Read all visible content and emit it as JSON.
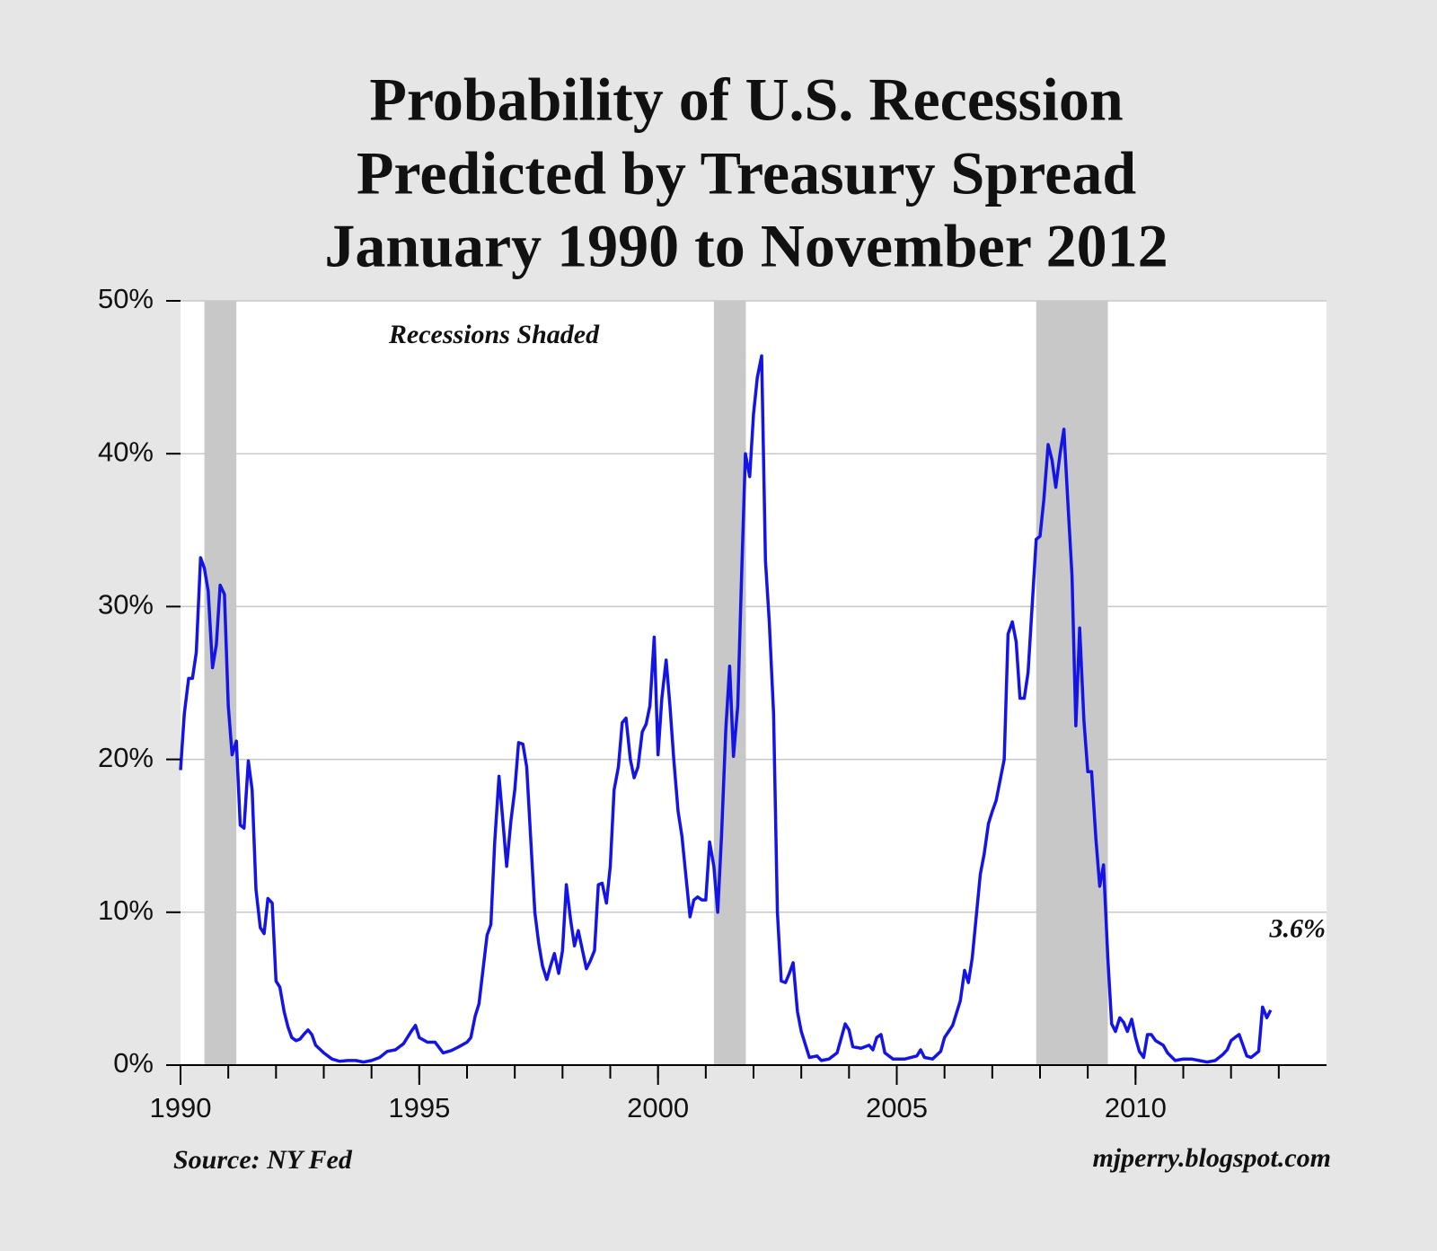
{
  "chart_data": {
    "type": "line",
    "title_lines": [
      "Probability of U.S. Recession",
      "Predicted by Treasury Spread",
      "January 1990 to November 2012"
    ],
    "annotation": "Recessions Shaded",
    "source": "Source: NY Fed",
    "credit": "mjperry.blogspot.com",
    "color": "#1414e6",
    "recessions": [
      [
        1990.5,
        1991.17
      ],
      [
        2001.17,
        2001.84
      ],
      [
        2007.92,
        2009.42
      ]
    ],
    "recession_color": "#c8c8c8",
    "xlim": [
      1990,
      2014
    ],
    "xticks": [
      1990,
      1995,
      2000,
      2005,
      2010
    ],
    "x_minor_ticks": [
      1990,
      1991,
      1992,
      1993,
      1994,
      1995,
      1996,
      1997,
      1998,
      1999,
      2000,
      2001,
      2002,
      2003,
      2004,
      2005,
      2006,
      2007,
      2008,
      2009,
      2010,
      2011,
      2012,
      2013
    ],
    "ylim": [
      0,
      50
    ],
    "yticks": [
      {
        "value": 0,
        "label": "0%"
      },
      {
        "value": 10,
        "label": "10%"
      },
      {
        "value": 20,
        "label": "20%"
      },
      {
        "value": 30,
        "label": "30%"
      },
      {
        "value": 40,
        "label": "40%"
      },
      {
        "value": 50,
        "label": "50%"
      }
    ],
    "grid": true,
    "x": [
      1990.0,
      1990.08,
      1990.17,
      1990.25,
      1990.33,
      1990.42,
      1990.5,
      1990.58,
      1990.67,
      1990.75,
      1990.83,
      1990.92,
      1991.0,
      1991.08,
      1991.17,
      1991.25,
      1991.33,
      1991.42,
      1991.5,
      1991.58,
      1991.67,
      1991.75,
      1991.83,
      1991.92,
      1992.0,
      1992.08,
      1992.17,
      1992.25,
      1992.33,
      1992.42,
      1992.5,
      1992.58,
      1992.67,
      1992.75,
      1992.83,
      1993.0,
      1993.17,
      1993.33,
      1993.5,
      1993.67,
      1993.83,
      1994.0,
      1994.17,
      1994.33,
      1994.5,
      1994.67,
      1994.83,
      1994.92,
      1995.0,
      1995.17,
      1995.33,
      1995.5,
      1995.67,
      1995.83,
      1996.0,
      1996.08,
      1996.17,
      1996.25,
      1996.42,
      1996.5,
      1996.58,
      1996.67,
      1996.75,
      1996.83,
      1996.92,
      1997.0,
      1997.08,
      1997.17,
      1997.25,
      1997.42,
      1997.5,
      1997.58,
      1997.67,
      1997.75,
      1997.83,
      1997.92,
      1998.0,
      1998.08,
      1998.17,
      1998.25,
      1998.33,
      1998.5,
      1998.58,
      1998.67,
      1998.75,
      1998.83,
      1998.92,
      1999.0,
      1999.08,
      1999.17,
      1999.25,
      1999.33,
      1999.42,
      1999.5,
      1999.58,
      1999.67,
      1999.75,
      1999.83,
      1999.92,
      2000.0,
      2000.08,
      2000.17,
      2000.25,
      2000.33,
      2000.42,
      2000.5,
      2000.58,
      2000.67,
      2000.75,
      2000.83,
      2000.92,
      2001.0,
      2001.08,
      2001.17,
      2001.25,
      2001.33,
      2001.42,
      2001.5,
      2001.58,
      2001.67,
      2001.75,
      2001.83,
      2001.92,
      2002.0,
      2002.08,
      2002.17,
      2002.25,
      2002.33,
      2002.42,
      2002.5,
      2002.58,
      2002.67,
      2002.75,
      2002.83,
      2002.92,
      2003.0,
      2003.17,
      2003.33,
      2003.42,
      2003.58,
      2003.75,
      2003.92,
      2004.0,
      2004.08,
      2004.25,
      2004.42,
      2004.5,
      2004.58,
      2004.67,
      2004.75,
      2004.92,
      2005.17,
      2005.42,
      2005.5,
      2005.58,
      2005.75,
      2005.92,
      2006.0,
      2006.17,
      2006.25,
      2006.33,
      2006.42,
      2006.5,
      2006.58,
      2006.75,
      2006.83,
      2006.92,
      2007.0,
      2007.08,
      2007.25,
      2007.33,
      2007.42,
      2007.5,
      2007.58,
      2007.67,
      2007.75,
      2007.92,
      2008.0,
      2008.08,
      2008.17,
      2008.25,
      2008.33,
      2008.42,
      2008.5,
      2008.58,
      2008.67,
      2008.75,
      2008.83,
      2008.92,
      2009.0,
      2009.08,
      2009.17,
      2009.25,
      2009.33,
      2009.42,
      2009.5,
      2009.58,
      2009.67,
      2009.75,
      2009.83,
      2009.92,
      2010.0,
      2010.08,
      2010.17,
      2010.25,
      2010.33,
      2010.42,
      2010.58,
      2010.67,
      2010.83,
      2011.0,
      2011.17,
      2011.33,
      2011.5,
      2011.67,
      2011.83,
      2011.92,
      2012.0,
      2012.08,
      2012.17,
      2012.33,
      2012.42,
      2012.5,
      2012.58,
      2012.66,
      2012.75,
      2012.83
    ],
    "values": [
      19.3,
      23,
      25.3,
      25.3,
      27,
      33.2,
      32.5,
      31,
      26,
      27.5,
      31.4,
      30.8,
      23.5,
      20.3,
      21.2,
      15.7,
      15.5,
      19.9,
      18,
      11.5,
      9,
      8.6,
      10.9,
      10.6,
      5.5,
      5.1,
      3.5,
      2.5,
      1.8,
      1.6,
      1.7,
      2.0,
      2.3,
      2.0,
      1.3,
      0.8,
      0.4,
      0.25,
      0.3,
      0.3,
      0.2,
      0.3,
      0.5,
      0.9,
      1.0,
      1.4,
      2.2,
      2.6,
      1.8,
      1.5,
      1.5,
      0.8,
      0.95,
      1.2,
      1.5,
      1.8,
      3.2,
      4.0,
      8.5,
      9.2,
      14.6,
      18.9,
      16,
      13,
      16,
      18,
      21.1,
      21,
      19.5,
      10,
      8,
      6.5,
      5.6,
      6.5,
      7.3,
      6.0,
      7.5,
      11.8,
      9.5,
      7.8,
      8.8,
      6.3,
      6.8,
      7.5,
      11.8,
      11.9,
      10.6,
      13,
      18,
      19.5,
      22.4,
      22.7,
      20,
      18.8,
      19.5,
      21.8,
      22.3,
      23.5,
      28,
      20.3,
      24,
      26.5,
      23.5,
      20,
      16.6,
      15,
      12.5,
      9.7,
      10.8,
      11,
      10.8,
      10.8,
      14.6,
      13,
      10,
      15,
      22,
      26.1,
      20.2,
      23.5,
      32,
      40,
      38.5,
      42.6,
      45,
      46.4,
      33,
      29,
      23,
      10,
      5.5,
      5.4,
      6.0,
      6.7,
      3.5,
      2.2,
      0.5,
      0.6,
      0.3,
      0.4,
      0.8,
      2.7,
      2.3,
      1.2,
      1.1,
      1.3,
      1.0,
      1.8,
      2.0,
      0.8,
      0.4,
      0.4,
      0.6,
      1.0,
      0.5,
      0.4,
      0.9,
      1.8,
      2.6,
      3.4,
      4.2,
      6.2,
      5.4,
      7,
      12.5,
      13.8,
      15.8,
      16.6,
      17.3,
      20,
      28.2,
      29,
      27.7,
      24,
      24,
      25.7,
      34.4,
      34.6,
      37,
      40.6,
      39.6,
      37.8,
      40,
      41.6,
      37,
      32,
      22.2,
      28.6,
      22.5,
      19.2,
      19.2,
      14.8,
      11.7,
      13.1,
      7,
      2.7,
      2.2,
      3.1,
      2.8,
      2.2,
      3.0,
      1.8,
      0.9,
      0.5,
      2.0,
      2.0,
      1.6,
      1.3,
      0.8,
      0.3,
      0.4,
      0.4,
      0.3,
      0.2,
      0.3,
      0.7,
      1.0,
      1.6,
      1.8,
      2.0,
      0.6,
      0.5,
      0.7,
      0.9,
      3.8,
      3.1,
      3.6
    ],
    "end_label": {
      "text": "3.6%",
      "x": 2012.83,
      "y": 3.6
    }
  }
}
